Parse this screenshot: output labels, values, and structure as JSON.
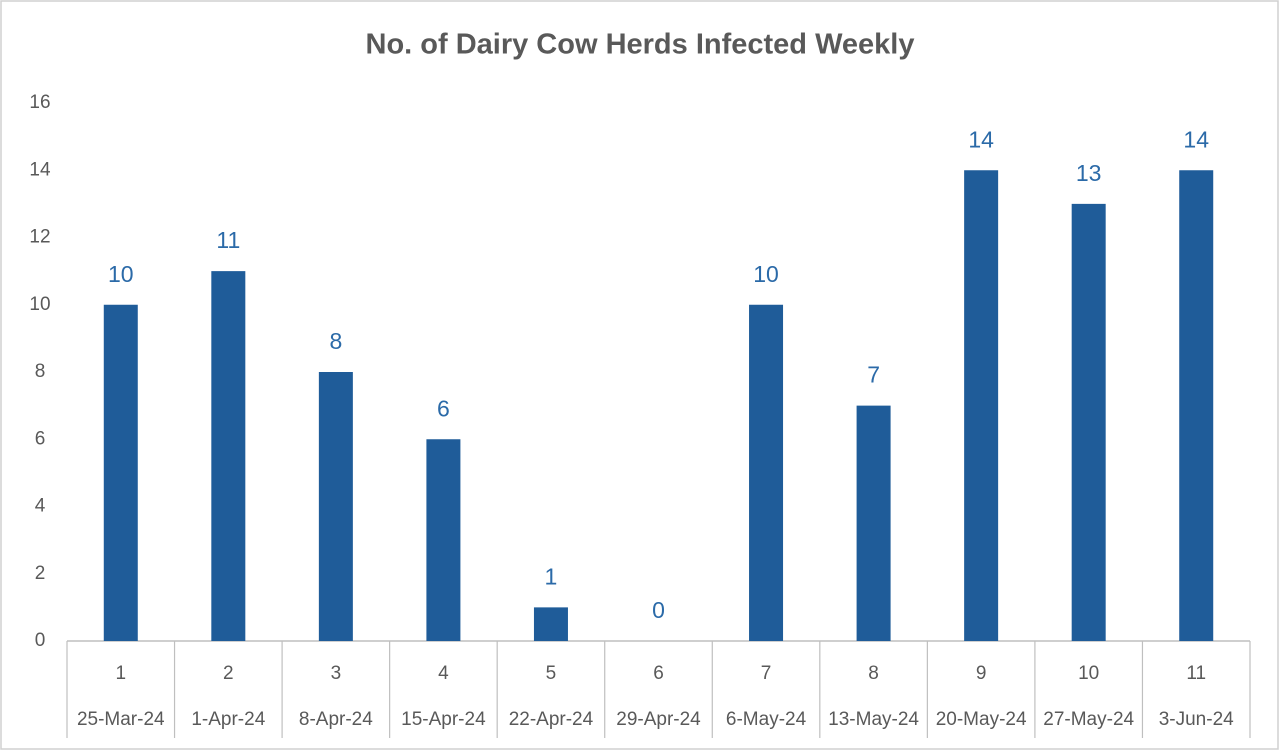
{
  "chart_data": {
    "type": "bar",
    "title": "No. of Dairy Cow Herds Infected Weekly",
    "categories": [
      "1",
      "2",
      "3",
      "4",
      "5",
      "6",
      "7",
      "8",
      "9",
      "10",
      "11"
    ],
    "dates": [
      "25-Mar-24",
      "1-Apr-24",
      "8-Apr-24",
      "15-Apr-24",
      "22-Apr-24",
      "29-Apr-24",
      "6-May-24",
      "13-May-24",
      "20-May-24",
      "27-May-24",
      "3-Jun-24"
    ],
    "values": [
      10,
      11,
      8,
      6,
      1,
      0,
      10,
      7,
      14,
      13,
      14
    ],
    "color": "#1f5c99",
    "ylim": [
      0,
      16
    ],
    "yticks": [
      0,
      2,
      4,
      6,
      8,
      10,
      12,
      14,
      16
    ],
    "grid": false
  }
}
